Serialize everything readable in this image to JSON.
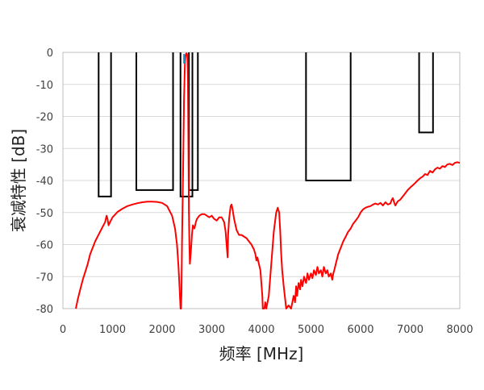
{
  "chart_data": {
    "type": "line",
    "title": "",
    "xlabel": "频率 [MHz]",
    "ylabel": "衰减特性 [dB]",
    "xlim": [
      0,
      8000
    ],
    "ylim": [
      -80,
      0
    ],
    "xticks": [
      0,
      1000,
      2000,
      3000,
      4000,
      5000,
      6000,
      7000,
      8000
    ],
    "yticks": [
      0,
      -10,
      -20,
      -30,
      -40,
      -50,
      -60,
      -70,
      -80
    ],
    "grid": {
      "horizontal": true,
      "vertical": false
    },
    "colors": {
      "series": "#ff0000",
      "mask": "#000000",
      "grid": "#d9d9d9",
      "frame": "#bfbfbf",
      "marker": "#1f9bd6"
    },
    "series": [
      {
        "values": [
          [
            260,
            -80
          ],
          [
            300,
            -77
          ],
          [
            350,
            -74
          ],
          [
            400,
            -71
          ],
          [
            450,
            -68.5
          ],
          [
            500,
            -66
          ],
          [
            550,
            -63
          ],
          [
            600,
            -61
          ],
          [
            650,
            -59
          ],
          [
            700,
            -57.5
          ],
          [
            750,
            -56
          ],
          [
            800,
            -54.5
          ],
          [
            850,
            -53
          ],
          [
            880,
            -51
          ],
          [
            900,
            -52
          ],
          [
            920,
            -54
          ],
          [
            950,
            -53
          ],
          [
            1000,
            -51.5
          ],
          [
            1100,
            -49.8
          ],
          [
            1200,
            -48.8
          ],
          [
            1300,
            -48
          ],
          [
            1400,
            -47.5
          ],
          [
            1500,
            -47.1
          ],
          [
            1600,
            -46.8
          ],
          [
            1700,
            -46.6
          ],
          [
            1800,
            -46.6
          ],
          [
            1900,
            -46.7
          ],
          [
            2000,
            -47
          ],
          [
            2100,
            -48
          ],
          [
            2200,
            -51
          ],
          [
            2260,
            -55
          ],
          [
            2300,
            -60
          ],
          [
            2330,
            -67
          ],
          [
            2350,
            -73
          ],
          [
            2370,
            -80
          ],
          [
            2380,
            -80
          ],
          [
            2390,
            -75
          ],
          [
            2400,
            -60
          ],
          [
            2420,
            -40
          ],
          [
            2440,
            -15
          ],
          [
            2460,
            -3
          ],
          [
            2470,
            -1
          ],
          [
            2480,
            -0.5
          ],
          [
            2490,
            -0.3
          ],
          [
            2500,
            -0.5
          ],
          [
            2510,
            -2
          ],
          [
            2520,
            -10
          ],
          [
            2530,
            -30
          ],
          [
            2540,
            -50
          ],
          [
            2550,
            -60
          ],
          [
            2560,
            -66
          ],
          [
            2580,
            -62
          ],
          [
            2600,
            -57
          ],
          [
            2620,
            -54
          ],
          [
            2650,
            -55
          ],
          [
            2680,
            -53
          ],
          [
            2700,
            -52
          ],
          [
            2750,
            -51
          ],
          [
            2800,
            -50.5
          ],
          [
            2850,
            -50.5
          ],
          [
            2900,
            -51
          ],
          [
            2950,
            -51.5
          ],
          [
            3000,
            -51
          ],
          [
            3050,
            -52
          ],
          [
            3100,
            -52.5
          ],
          [
            3150,
            -51.5
          ],
          [
            3200,
            -51.5
          ],
          [
            3250,
            -53
          ],
          [
            3280,
            -56
          ],
          [
            3300,
            -60
          ],
          [
            3320,
            -64
          ],
          [
            3330,
            -57
          ],
          [
            3350,
            -52
          ],
          [
            3380,
            -48
          ],
          [
            3400,
            -47.5
          ],
          [
            3420,
            -49
          ],
          [
            3450,
            -52
          ],
          [
            3500,
            -55.5
          ],
          [
            3550,
            -57
          ],
          [
            3600,
            -57
          ],
          [
            3650,
            -57.5
          ],
          [
            3700,
            -58
          ],
          [
            3750,
            -59
          ],
          [
            3800,
            -60
          ],
          [
            3850,
            -61.5
          ],
          [
            3880,
            -63
          ],
          [
            3900,
            -65
          ],
          [
            3920,
            -64
          ],
          [
            3950,
            -66
          ],
          [
            3980,
            -68
          ],
          [
            4000,
            -72
          ],
          [
            4020,
            -76
          ],
          [
            4030,
            -80
          ],
          [
            4060,
            -80
          ],
          [
            4080,
            -78
          ],
          [
            4100,
            -80
          ],
          [
            4150,
            -76
          ],
          [
            4200,
            -66
          ],
          [
            4250,
            -56
          ],
          [
            4300,
            -50
          ],
          [
            4330,
            -48.5
          ],
          [
            4360,
            -50
          ],
          [
            4380,
            -56
          ],
          [
            4400,
            -63
          ],
          [
            4420,
            -68
          ],
          [
            4450,
            -73
          ],
          [
            4480,
            -77
          ],
          [
            4500,
            -80
          ],
          [
            4550,
            -79
          ],
          [
            4600,
            -80
          ],
          [
            4650,
            -76
          ],
          [
            4680,
            -78
          ],
          [
            4700,
            -73
          ],
          [
            4720,
            -76
          ],
          [
            4750,
            -72
          ],
          [
            4780,
            -74
          ],
          [
            4800,
            -71
          ],
          [
            4830,
            -73
          ],
          [
            4860,
            -70
          ],
          [
            4900,
            -72
          ],
          [
            4930,
            -69
          ],
          [
            4960,
            -71
          ],
          [
            5000,
            -69
          ],
          [
            5030,
            -70.5
          ],
          [
            5060,
            -68
          ],
          [
            5100,
            -69.5
          ],
          [
            5130,
            -67
          ],
          [
            5160,
            -69
          ],
          [
            5200,
            -68
          ],
          [
            5230,
            -70
          ],
          [
            5260,
            -67
          ],
          [
            5300,
            -69
          ],
          [
            5330,
            -68
          ],
          [
            5360,
            -70
          ],
          [
            5400,
            -69
          ],
          [
            5430,
            -71
          ],
          [
            5450,
            -69
          ],
          [
            5470,
            -68
          ],
          [
            5500,
            -66
          ],
          [
            5550,
            -63
          ],
          [
            5600,
            -61
          ],
          [
            5650,
            -59
          ],
          [
            5700,
            -57.5
          ],
          [
            5750,
            -56
          ],
          [
            5800,
            -55
          ],
          [
            5850,
            -53.5
          ],
          [
            5900,
            -52.5
          ],
          [
            5950,
            -51.5
          ],
          [
            6000,
            -50
          ],
          [
            6050,
            -49
          ],
          [
            6100,
            -48.5
          ],
          [
            6150,
            -48.2
          ],
          [
            6200,
            -48
          ],
          [
            6250,
            -47.5
          ],
          [
            6300,
            -47.2
          ],
          [
            6350,
            -47.5
          ],
          [
            6400,
            -47
          ],
          [
            6450,
            -47.8
          ],
          [
            6500,
            -46.8
          ],
          [
            6550,
            -47.5
          ],
          [
            6600,
            -47.2
          ],
          [
            6630,
            -46
          ],
          [
            6650,
            -45.5
          ],
          [
            6680,
            -47
          ],
          [
            6700,
            -47.8
          ],
          [
            6750,
            -46.5
          ],
          [
            6800,
            -46
          ],
          [
            6850,
            -45
          ],
          [
            6900,
            -44
          ],
          [
            6950,
            -43
          ],
          [
            7000,
            -42.2
          ],
          [
            7050,
            -41.5
          ],
          [
            7100,
            -40.8
          ],
          [
            7150,
            -40
          ],
          [
            7200,
            -39.3
          ],
          [
            7250,
            -38.8
          ],
          [
            7300,
            -38
          ],
          [
            7350,
            -38.3
          ],
          [
            7400,
            -37
          ],
          [
            7450,
            -37.5
          ],
          [
            7500,
            -36.5
          ],
          [
            7550,
            -36
          ],
          [
            7600,
            -36.3
          ],
          [
            7650,
            -35.5
          ],
          [
            7700,
            -35.8
          ],
          [
            7750,
            -35
          ],
          [
            7800,
            -34.8
          ],
          [
            7850,
            -35.2
          ],
          [
            7900,
            -34.5
          ],
          [
            7950,
            -34.3
          ],
          [
            8000,
            -34.5
          ]
        ]
      }
    ],
    "mask": [
      {
        "x": [
          720,
          970
        ],
        "y": -45
      },
      {
        "x": [
          1480,
          2220
        ],
        "y": -43
      },
      {
        "x": [
          2370,
          2610
        ],
        "y": -45
      },
      {
        "x": [
          2540,
          2720
        ],
        "y": -43
      },
      {
        "x": [
          4900,
          5800
        ],
        "y": -40
      },
      {
        "x": [
          7180,
          7460
        ],
        "y": -25
      }
    ],
    "marker_x": 2440
  }
}
